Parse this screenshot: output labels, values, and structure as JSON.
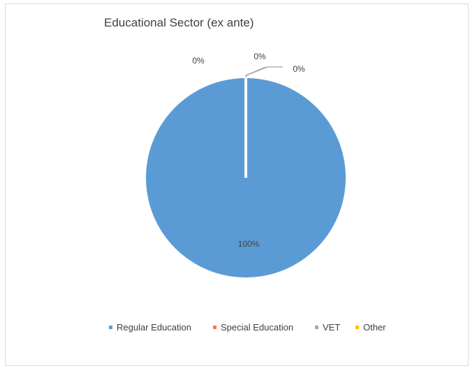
{
  "chart_data": {
    "type": "pie",
    "title": "Educational Sector (ex ante)",
    "categories": [
      "Regular Education",
      "Special Education",
      "VET",
      "Other"
    ],
    "values": [
      100,
      0,
      0,
      0
    ],
    "data_labels": [
      "100%",
      "0%",
      "0%",
      "0%"
    ],
    "colors": [
      "#5b9bd5",
      "#ed7d31",
      "#a5a5a5",
      "#ffc000"
    ],
    "legend_position": "bottom"
  }
}
